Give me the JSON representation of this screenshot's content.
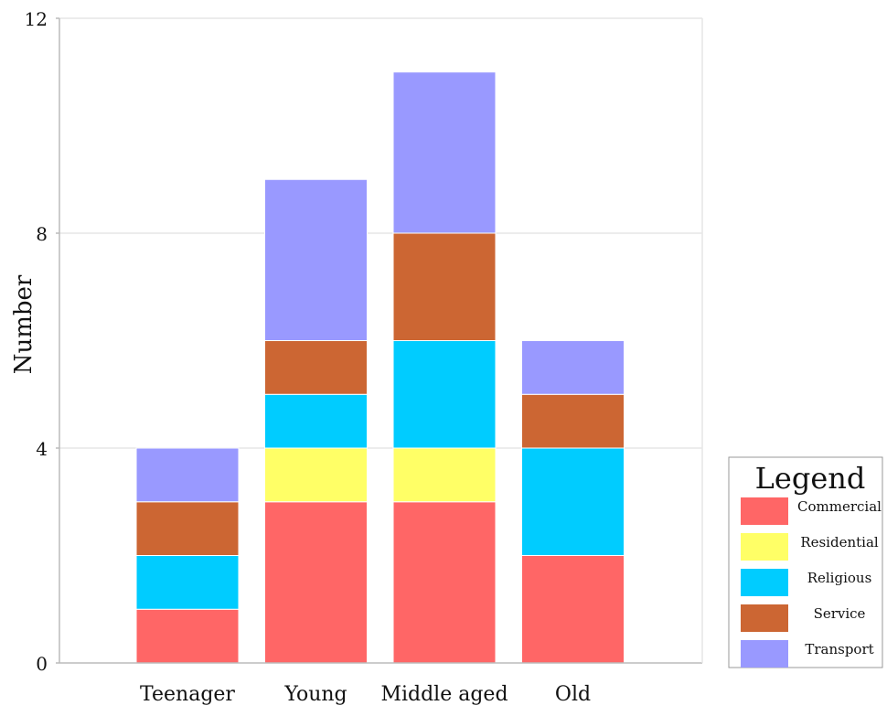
{
  "chart_data": {
    "type": "bar",
    "stacked": true,
    "title": "",
    "xlabel": "",
    "ylabel": "Number",
    "categories": [
      "Teenager",
      "Young",
      "Middle aged",
      "Old"
    ],
    "ylim": [
      0,
      12
    ],
    "yticks": [
      0,
      4,
      8,
      12
    ],
    "grid": "horizontal",
    "series": [
      {
        "name": "Commercial",
        "color": "#ff6666",
        "values": [
          1,
          3,
          3,
          2
        ]
      },
      {
        "name": "Residential",
        "color": "#ffff66",
        "values": [
          0,
          1,
          1,
          0
        ]
      },
      {
        "name": "Religious",
        "color": "#00ccff",
        "values": [
          1,
          1,
          2,
          2
        ]
      },
      {
        "name": "Service",
        "color": "#cc6633",
        "values": [
          1,
          1,
          2,
          1
        ]
      },
      {
        "name": "Transport",
        "color": "#9999ff",
        "values": [
          1,
          3,
          3,
          1
        ]
      }
    ],
    "legend": {
      "title": "Legend",
      "position": "bottom-right"
    }
  }
}
